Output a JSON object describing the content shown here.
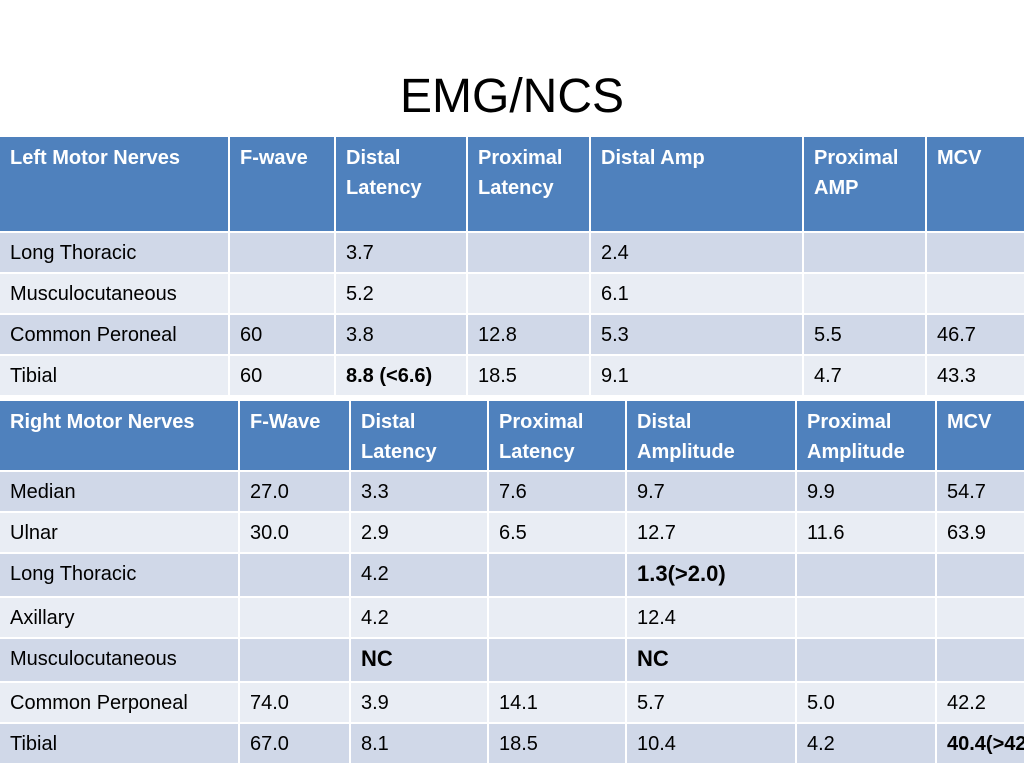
{
  "title": "EMG/NCS",
  "colors": {
    "header_bg": "#4f81bd",
    "row_odd_bg": "#d0d8e8",
    "row_even_bg": "#e9edf4"
  },
  "left_table": {
    "headers": [
      "Left Motor Nerves",
      "F-wave",
      "Distal Latency",
      "Proximal Latency",
      "Distal Amp",
      "Proximal AMP",
      "MCV"
    ],
    "rows": [
      [
        "Long Thoracic",
        "",
        "3.7",
        "",
        "2.4",
        "",
        ""
      ],
      [
        "Musculocutaneous",
        "",
        "5.2",
        "",
        "6.1",
        "",
        ""
      ],
      [
        "Common Peroneal",
        "60",
        "3.8",
        "12.8",
        "5.3",
        "5.5",
        "46.7"
      ],
      [
        "Tibial",
        "60",
        "8.8 (<6.6)",
        "18.5",
        "9.1",
        "4.7",
        "43.3"
      ]
    ]
  },
  "right_table": {
    "headers": [
      "Right Motor Nerves",
      "F-Wave",
      "Distal Latency",
      "Proximal Latency",
      "Distal Amplitude",
      "Proximal Amplitude",
      "MCV"
    ],
    "rows": [
      [
        "Median",
        "27.0",
        "3.3",
        "7.6",
        "9.7",
        "9.9",
        "54.7"
      ],
      [
        "Ulnar",
        "30.0",
        "2.9",
        "6.5",
        "12.7",
        "11.6",
        "63.9"
      ],
      [
        "Long Thoracic",
        "",
        "4.2",
        "",
        "1.3(>2.0)",
        "",
        ""
      ],
      [
        "Axillary",
        "",
        "4.2",
        "",
        "12.4",
        "",
        ""
      ],
      [
        "Musculocutaneous",
        "",
        "NC",
        "",
        "NC",
        "",
        ""
      ],
      [
        "Common Perponeal",
        "74.0",
        "3.9",
        "14.1",
        "5.7",
        "5.0",
        "42.2"
      ],
      [
        "Tibial",
        "67.0",
        "8.1",
        "18.5",
        "10.4",
        "4.2",
        "40.4(>42"
      ]
    ]
  }
}
